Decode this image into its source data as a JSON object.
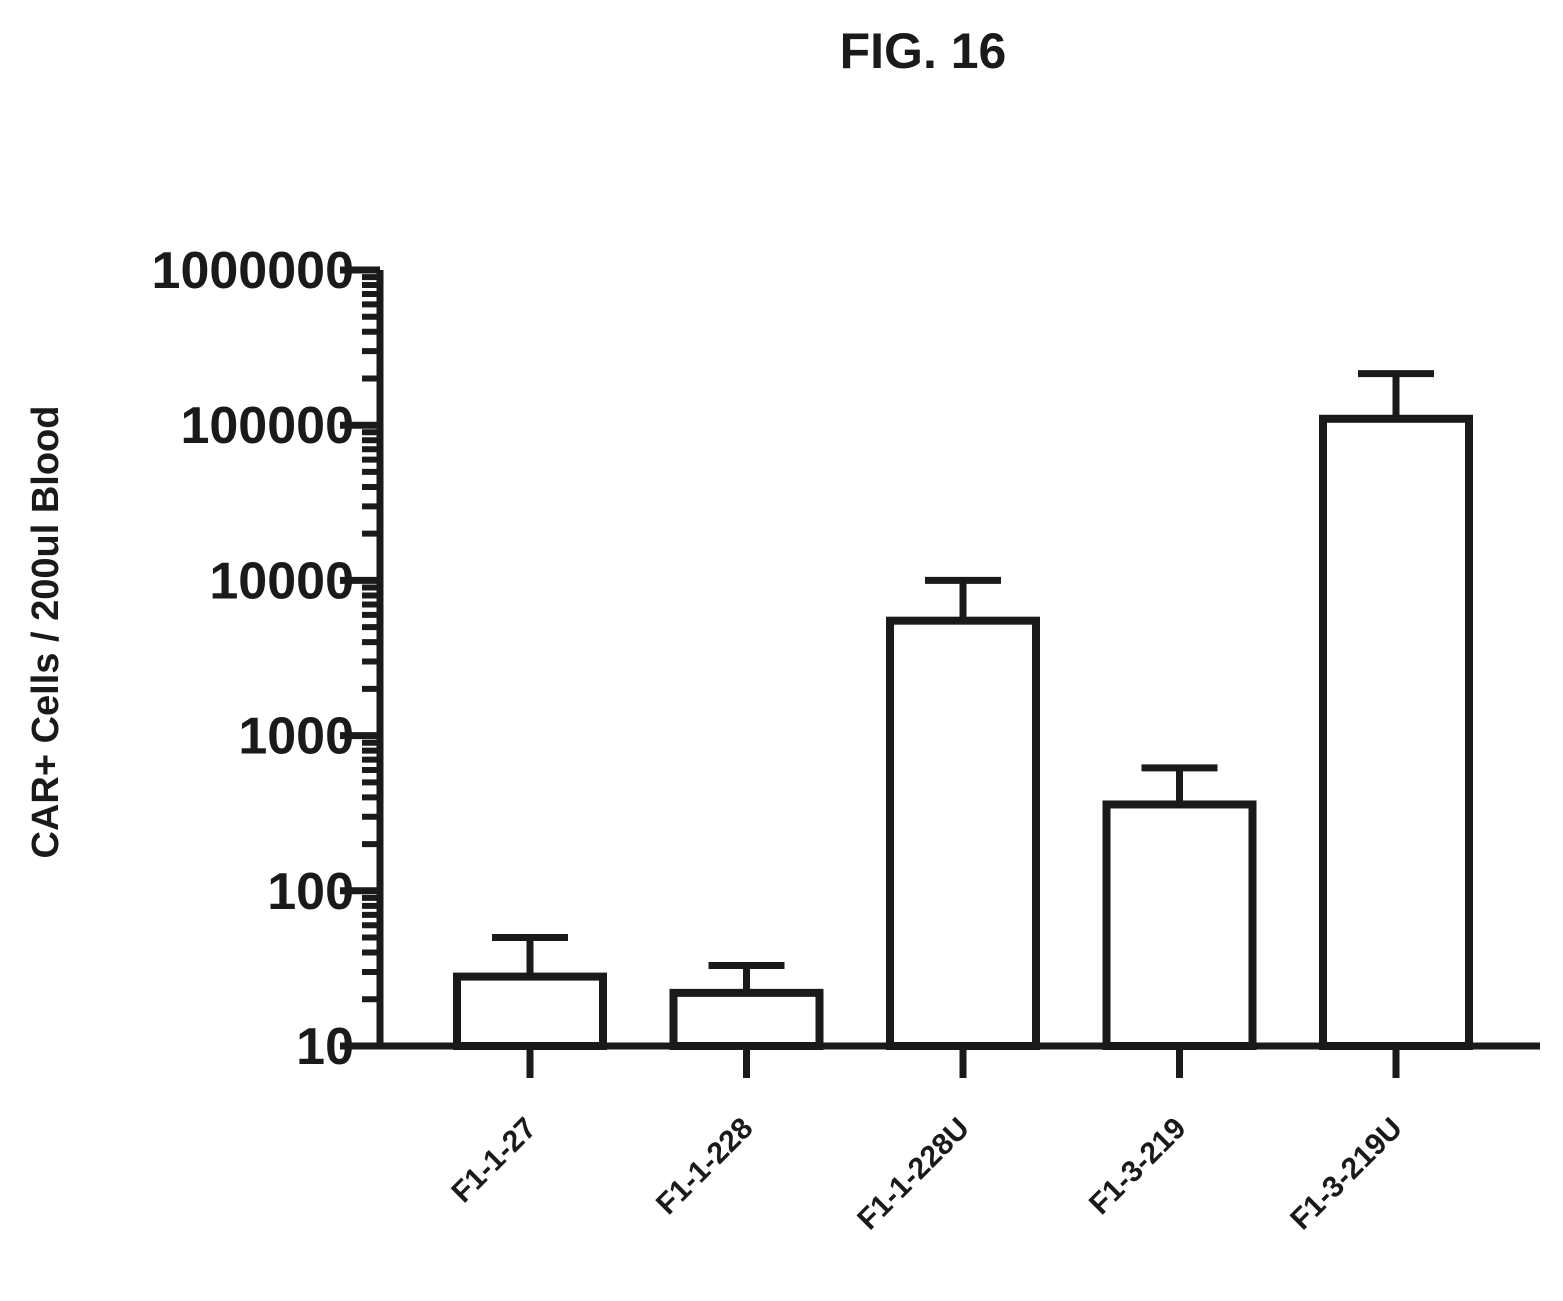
{
  "figure_label": "FIG. 16",
  "chart_data": {
    "type": "bar",
    "title": "",
    "ylabel": "CAR+ Cells / 200ul Blood",
    "xlabel": "",
    "yscale": "log",
    "ylim": [
      10,
      1000000
    ],
    "yticks": [
      {
        "value": 10,
        "label": "10"
      },
      {
        "value": 100,
        "label": "100"
      },
      {
        "value": 1000,
        "label": "1000"
      },
      {
        "value": 10000,
        "label": "10000"
      },
      {
        "value": 100000,
        "label": "100000"
      },
      {
        "value": 1000000,
        "label": "1000000"
      }
    ],
    "categories": [
      "F1-1-27",
      "F1-1-228",
      "F1-1-228U",
      "F1-3-219",
      "F1-3-219U"
    ],
    "values": [
      28,
      22,
      5500,
      360,
      110000
    ],
    "error_upper": [
      50,
      33,
      10000,
      620,
      215000
    ],
    "grid": false,
    "bar_fill": "#ffffff",
    "stroke_color": "#1a1a1a"
  }
}
